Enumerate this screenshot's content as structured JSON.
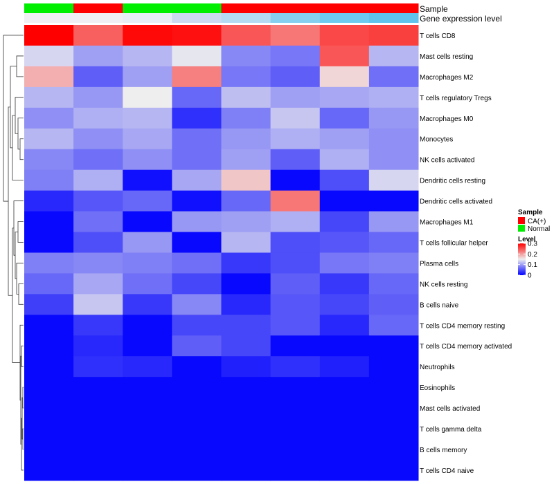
{
  "chart_data": {
    "type": "heatmap",
    "annotation_labels": {
      "sample": "Sample",
      "expression": "Gene expression level"
    },
    "sample_groups": [
      "Normal",
      "CA(+)",
      "Normal",
      "Normal",
      "CA(+)",
      "CA(+)",
      "CA(+)",
      "CA(+)"
    ],
    "expression_shades": [
      "#f0f0f4",
      "#f0f0f4",
      "#e8eef5",
      "#ccd9f0",
      "#b5dbf2",
      "#86cfee",
      "#6ecaee",
      "#5fc3ec"
    ],
    "rows": [
      "T cells CD8",
      "Mast cells resting",
      "Macrophages M2",
      "T cells regulatory  Tregs",
      "Macrophages M0",
      "Monocytes",
      "NK cells activated",
      "Dendritic cells resting",
      "Dendritic cells activated",
      "Macrophages M1",
      "T cells follicular helper",
      "Plasma cells",
      "NK cells resting",
      "B cells naive",
      "T cells CD4 memory resting",
      "T cells CD4 memory activated",
      "Neutrophils",
      "Eosinophils",
      "Mast cells activated",
      "T cells gamma delta",
      "B cells memory",
      "T cells CD4 naive"
    ],
    "values": [
      [
        0.3,
        0.24,
        0.295,
        0.29,
        0.245,
        0.225,
        0.255,
        0.26
      ],
      [
        0.135,
        0.1,
        0.115,
        0.145,
        0.085,
        0.075,
        0.245,
        0.115
      ],
      [
        0.19,
        0.06,
        0.1,
        0.22,
        0.075,
        0.06,
        0.165,
        0.07
      ],
      [
        0.115,
        0.095,
        0.15,
        0.065,
        0.12,
        0.1,
        0.105,
        0.11
      ],
      [
        0.09,
        0.11,
        0.115,
        0.03,
        0.08,
        0.125,
        0.065,
        0.095
      ],
      [
        0.115,
        0.09,
        0.105,
        0.07,
        0.095,
        0.11,
        0.1,
        0.09
      ],
      [
        0.085,
        0.07,
        0.09,
        0.07,
        0.1,
        0.06,
        0.11,
        0.09
      ],
      [
        0.08,
        0.11,
        0.01,
        0.105,
        0.175,
        0.005,
        0.05,
        0.135
      ],
      [
        0.025,
        0.055,
        0.065,
        0.01,
        0.065,
        0.225,
        0.005,
        0.005
      ],
      [
        0.005,
        0.07,
        0.005,
        0.095,
        0.1,
        0.11,
        0.045,
        0.095
      ],
      [
        0.005,
        0.05,
        0.095,
        0.005,
        0.115,
        0.05,
        0.055,
        0.065
      ],
      [
        0.08,
        0.085,
        0.08,
        0.07,
        0.035,
        0.05,
        0.075,
        0.08
      ],
      [
        0.065,
        0.105,
        0.07,
        0.045,
        0.005,
        0.06,
        0.035,
        0.065
      ],
      [
        0.04,
        0.125,
        0.035,
        0.085,
        0.025,
        0.055,
        0.045,
        0.06
      ],
      [
        0.005,
        0.035,
        0.005,
        0.045,
        0.045,
        0.055,
        0.025,
        0.065
      ],
      [
        0.005,
        0.025,
        0.005,
        0.06,
        0.045,
        0.005,
        0.005,
        0.005
      ],
      [
        0.005,
        0.03,
        0.025,
        0.005,
        0.02,
        0.03,
        0.02,
        0.005
      ],
      [
        0.005,
        0.005,
        0.005,
        0.005,
        0.005,
        0.005,
        0.005,
        0.005
      ],
      [
        0.005,
        0.005,
        0.005,
        0.005,
        0.005,
        0.005,
        0.005,
        0.005
      ],
      [
        0.005,
        0.005,
        0.005,
        0.005,
        0.005,
        0.005,
        0.005,
        0.005
      ],
      [
        0.005,
        0.005,
        0.005,
        0.005,
        0.005,
        0.005,
        0.005,
        0.005
      ],
      [
        0.005,
        0.005,
        0.005,
        0.005,
        0.005,
        0.005,
        0.005,
        0.005
      ]
    ],
    "value_range": [
      0,
      0.3
    ],
    "legend": {
      "sample_title": "Sample",
      "sample_entries": [
        {
          "label": "CA(+)",
          "color": "#ff0000"
        },
        {
          "label": "Normal",
          "color": "#00ee00"
        }
      ],
      "level_title": "Level",
      "level_ticks": [
        "0.3",
        "0.2",
        "0.1",
        "0"
      ],
      "level_tick_values": [
        0.3,
        0.2,
        0.1,
        0
      ],
      "placement": "right"
    },
    "colors": {
      "low": "#0000ff",
      "mid": "#eeeeee",
      "high": "#ff0000"
    },
    "group_colors": {
      "CA(+)": "#ff0000",
      "Normal": "#00ee00"
    },
    "dendrogram": "left"
  }
}
